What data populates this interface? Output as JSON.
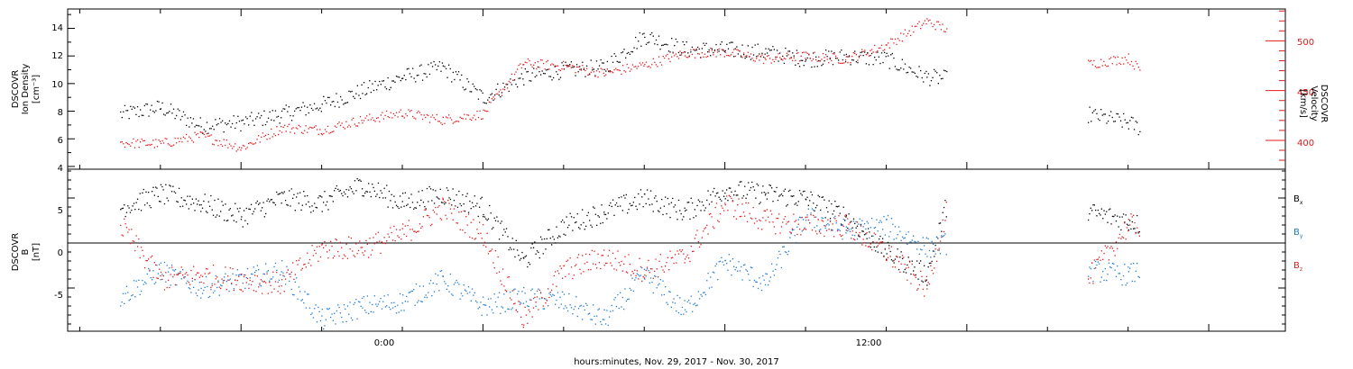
{
  "chart_data": [
    {
      "type": "scatter",
      "panel": "top",
      "title": "",
      "xlabel": "hours:minutes, Nov. 29, 2017 - Nov. 30, 2017",
      "x_tick_labels": [
        "0:00",
        "12:00"
      ],
      "ylabel_left": [
        "DSCOVR",
        "Ion Density",
        "[cm⁻³]"
      ],
      "ylim_left": [
        3.8,
        15.4
      ],
      "yticks_left": [
        "4",
        "6",
        "8",
        "10",
        "12",
        "14"
      ],
      "ylabel_right": [
        "DSCOVR",
        "Velocity",
        "[km/s]"
      ],
      "ylim_right": [
        371,
        532
      ],
      "yticks_right": [
        "400",
        "450",
        "500"
      ],
      "series": [
        {
          "name": "",
          "color": "#000000",
          "axis": "left",
          "x": [
            -9.0,
            -8.0,
            -7.0,
            -6.0,
            -5.0,
            -4.0,
            -3.0,
            -2.0,
            -1.0,
            0.0,
            1.0,
            2.0,
            3.0,
            4.0,
            5.0,
            6.0,
            7.0,
            8.0,
            9.0,
            10.0,
            11.0,
            11.5,
            15.0,
            16.0,
            16.3
          ],
          "y": [
            7.8,
            8.3,
            7.0,
            7.2,
            7.8,
            8.5,
            9.5,
            10.5,
            11.2,
            9.0,
            10.5,
            11.0,
            11.2,
            13.5,
            12.5,
            12.5,
            12.3,
            11.8,
            12.0,
            11.8,
            10.5,
            10.4,
            7.8,
            7.2,
            6.8
          ]
        },
        {
          "name": "",
          "color": "#e41a1c",
          "axis": "right",
          "x": [
            -9.0,
            -8.0,
            -7.0,
            -6.0,
            -5.0,
            -4.0,
            -3.0,
            -2.0,
            -1.0,
            0.0,
            1.0,
            2.0,
            3.0,
            4.0,
            5.0,
            6.0,
            7.0,
            8.0,
            9.0,
            10.0,
            11.0,
            11.5,
            15.0,
            16.0,
            16.3
          ],
          "y": [
            398,
            397,
            405,
            393,
            413,
            411,
            421,
            428,
            421,
            427,
            478,
            475,
            468,
            476,
            488,
            489,
            482,
            485,
            482,
            496,
            520,
            512,
            477,
            483,
            470
          ]
        }
      ]
    },
    {
      "type": "scatter",
      "panel": "bottom",
      "title": "",
      "xlabel": "hours:minutes, Nov. 29, 2017 - Nov. 30, 2017",
      "x_tick_labels": [
        "0:00",
        "12:00"
      ],
      "ylabel_left": [
        "DSCOVR",
        "B",
        "[nT]"
      ],
      "ylim": [
        -9.8,
        8.2
      ],
      "yticks": [
        "5",
        "0",
        "-5"
      ],
      "legend": {
        "placement": "right",
        "labels": [
          "Bx",
          "By",
          "Bz"
        ]
      },
      "series": [
        {
          "name": "Bx",
          "color": "#000000",
          "x": [
            -9.0,
            -8.0,
            -7.0,
            -6.0,
            -5.0,
            -4.0,
            -3.0,
            -2.0,
            -1.0,
            0.0,
            1.0,
            2.0,
            3.0,
            4.0,
            5.0,
            6.0,
            7.0,
            8.0,
            9.0,
            10.0,
            11.0,
            11.5,
            15.0,
            16.0,
            16.3
          ],
          "y": [
            4.0,
            5.5,
            4.5,
            3.0,
            5.0,
            4.5,
            6.5,
            4.5,
            5.5,
            4.0,
            -2.0,
            2.0,
            3.5,
            5.0,
            3.5,
            6.0,
            5.5,
            5.0,
            3.0,
            -1.0,
            -3.5,
            4.5,
            3.5,
            2.5,
            2.0
          ]
        },
        {
          "name": "By",
          "color": "#1f7ad4",
          "x": [
            -9.0,
            -8.0,
            -7.0,
            -6.0,
            -5.0,
            -4.0,
            -3.0,
            -2.0,
            -1.0,
            0.0,
            1.0,
            2.0,
            3.0,
            4.0,
            5.0,
            6.0,
            7.0,
            8.0,
            9.0,
            10.0,
            11.0,
            11.5,
            15.0,
            16.0,
            16.3
          ],
          "y": [
            -6.0,
            -3.0,
            -5.0,
            -4.0,
            -3.0,
            -8.5,
            -7.0,
            -6.5,
            -4.0,
            -7.0,
            -6.0,
            -6.5,
            -8.5,
            -3.5,
            -7.5,
            -2.0,
            -4.5,
            3.0,
            1.5,
            2.0,
            -0.5,
            0.0,
            -3.0,
            -3.5,
            -3.0
          ]
        },
        {
          "name": "Bz",
          "color": "#e41a1c",
          "x": [
            -9.0,
            -8.0,
            -7.0,
            -6.0,
            -5.0,
            -4.0,
            -3.0,
            -2.0,
            -1.0,
            0.0,
            1.0,
            2.0,
            3.0,
            4.0,
            5.0,
            6.0,
            7.0,
            8.0,
            9.0,
            10.0,
            11.0,
            11.5,
            15.0,
            16.0,
            16.3
          ],
          "y": [
            2.0,
            -4.0,
            -3.5,
            -4.0,
            -4.5,
            -0.5,
            -0.5,
            1.0,
            4.0,
            1.0,
            -8.5,
            -3.0,
            -1.5,
            -3.0,
            -1.5,
            4.5,
            2.5,
            2.0,
            2.0,
            -1.0,
            -5.0,
            4.0,
            -4.0,
            2.0,
            2.0
          ]
        }
      ]
    }
  ],
  "legend_labels": {
    "bx_main": "B",
    "bx_sub": "x",
    "by_main": "B",
    "by_sub": "y",
    "bz_main": "B",
    "bz_sub": "z"
  },
  "colors": {
    "black": "#000000",
    "blue": "#1f7ad4",
    "red": "#e41a1c"
  }
}
